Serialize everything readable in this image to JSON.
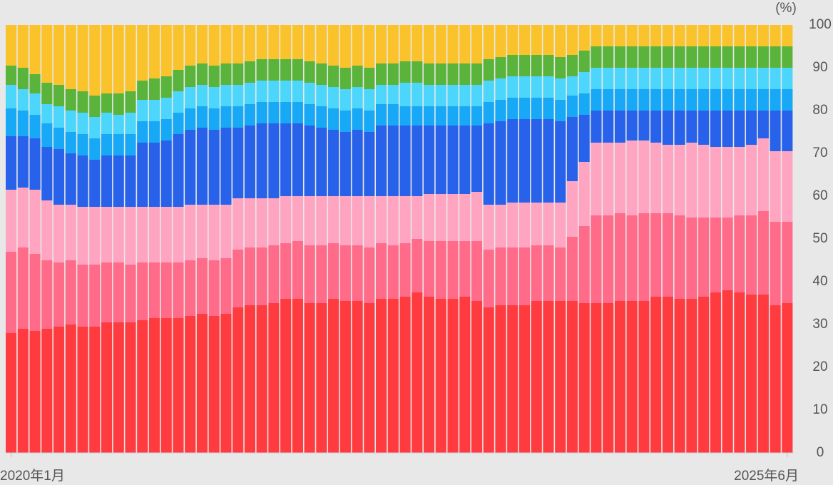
{
  "chart_data": {
    "type": "stacked_bar",
    "ylabel": "(%)",
    "categories": [
      "2020年1月",
      null,
      null,
      null,
      null,
      null,
      null,
      null,
      null,
      null,
      null,
      null,
      null,
      null,
      null,
      null,
      null,
      null,
      null,
      null,
      null,
      null,
      null,
      null,
      null,
      null,
      null,
      null,
      null,
      null,
      null,
      null,
      null,
      null,
      null,
      null,
      null,
      null,
      null,
      null,
      null,
      null,
      null,
      null,
      null,
      null,
      null,
      null,
      null,
      null,
      null,
      null,
      null,
      null,
      null,
      null,
      null,
      null,
      null,
      null,
      null,
      null,
      null,
      null,
      null,
      "2025年6月"
    ],
    "ylim": [
      0,
      100
    ],
    "yticks": [
      0,
      10,
      20,
      30,
      40,
      50,
      60,
      70,
      80,
      90,
      100
    ],
    "grid": false,
    "series": [
      {
        "color": "#ff3b40",
        "values": [
          28,
          29,
          28.5,
          29,
          29.5,
          30,
          29.5,
          29.5,
          30.5,
          30.5,
          30.5,
          31,
          31.5,
          31.5,
          31.5,
          32,
          32.5,
          32,
          32.5,
          34,
          34.5,
          34.5,
          35,
          36,
          36,
          35,
          35,
          36,
          35.5,
          35.5,
          35,
          36,
          36,
          36.5,
          37.5,
          36.5,
          36,
          36,
          36.5,
          35.5,
          34,
          34.5,
          34.5,
          34.5,
          35.5,
          35.5,
          35.5,
          35.5,
          35,
          35,
          35,
          35.5,
          35.5,
          35.5,
          36.5,
          36.5,
          36,
          36,
          36.5,
          37.5,
          38,
          37.5,
          37,
          37,
          34.5,
          35
        ]
      },
      {
        "color": "#ff6b89",
        "values": [
          19,
          19,
          18,
          16,
          15,
          15,
          14.5,
          14.5,
          14,
          14,
          13.5,
          13.5,
          13,
          13,
          13,
          13,
          13,
          13,
          13,
          13.5,
          13.5,
          13.5,
          13.5,
          13,
          13.5,
          13.5,
          13.5,
          13,
          13,
          13,
          13,
          13,
          12.5,
          12.5,
          12.5,
          13,
          13.5,
          13.5,
          13,
          14,
          13.5,
          13.5,
          13.5,
          13.5,
          13,
          13,
          12.5,
          15,
          18,
          20.5,
          20.5,
          20.5,
          20,
          20.5,
          19.5,
          19.5,
          19.5,
          19,
          18.5,
          17.5,
          17,
          18,
          18.5,
          19.5,
          19.5,
          19
        ]
      },
      {
        "color": "#ffa5c1",
        "values": [
          14.5,
          14,
          15,
          14,
          13.5,
          13,
          13.5,
          13.5,
          13,
          13,
          13.5,
          13,
          13,
          13,
          13,
          13,
          12.5,
          13,
          12.5,
          12,
          11.5,
          11.5,
          11,
          11,
          10.5,
          11.5,
          11.5,
          11,
          11.5,
          11.5,
          12,
          11,
          11.5,
          11,
          10,
          11,
          11,
          11,
          11,
          11.5,
          10.5,
          10,
          10.5,
          10.5,
          10,
          10,
          10.5,
          13,
          15,
          17,
          17,
          16.5,
          17.5,
          17,
          16.5,
          16,
          16.5,
          17.5,
          17,
          16.5,
          16.5,
          16,
          16.5,
          17,
          16.5,
          16.5
        ]
      },
      {
        "color": "#2962ea",
        "values": [
          12.5,
          12,
          12,
          12.5,
          13,
          12,
          12,
          11,
          12,
          12,
          12,
          15,
          15,
          15.5,
          17,
          17.5,
          18,
          17.5,
          18,
          16.5,
          17,
          17.5,
          17.5,
          17,
          17,
          16.5,
          16,
          15.5,
          15,
          15.5,
          15,
          16.5,
          16.5,
          16.5,
          16.5,
          16,
          16,
          16,
          16,
          15.5,
          19,
          19.5,
          19.5,
          19.5,
          19.5,
          19.5,
          19,
          15,
          11,
          7.5,
          7.5,
          7.5,
          7,
          7,
          7.5,
          8,
          8,
          7.5,
          8,
          8.5,
          8.5,
          8.5,
          8,
          6.5,
          9.5,
          9.5
        ]
      },
      {
        "color": "#17a8f6",
        "values": [
          6.5,
          6,
          5.5,
          5.5,
          5,
          5,
          5,
          5,
          5,
          5,
          5,
          5,
          5,
          5,
          5,
          5,
          5,
          5,
          5,
          5,
          5,
          5,
          5,
          5,
          5,
          5,
          5,
          5,
          5,
          5,
          5,
          5,
          5,
          4.5,
          4.5,
          4.5,
          4.5,
          4.5,
          4.5,
          4.5,
          5,
          5,
          5,
          5,
          5,
          5,
          5,
          5,
          5,
          5,
          5,
          5,
          5,
          5,
          5,
          5,
          5,
          5,
          5,
          5,
          5,
          5,
          5,
          5,
          5,
          5
        ]
      },
      {
        "color": "#4dd6fc",
        "values": [
          5.5,
          5,
          5,
          4.5,
          5,
          5,
          5,
          5,
          5,
          4.5,
          5,
          5,
          5,
          5,
          5,
          5,
          5,
          5,
          5,
          5,
          5,
          5,
          5,
          5,
          5,
          5,
          5,
          5,
          5,
          5,
          5,
          4.5,
          4.5,
          5.5,
          5.5,
          5,
          5,
          5,
          5,
          5,
          5,
          5,
          5,
          5,
          5,
          5,
          5,
          4.5,
          5,
          5,
          5,
          5,
          5,
          5,
          5,
          5,
          5,
          5,
          5,
          5,
          5,
          5,
          5,
          5,
          5,
          5
        ]
      },
      {
        "color": "#5ab43c",
        "values": [
          4.5,
          5,
          4.5,
          5,
          5,
          5,
          5,
          5,
          4.5,
          5,
          5,
          4.5,
          5,
          5,
          5,
          5,
          5,
          5,
          5,
          5,
          5,
          5,
          5,
          5,
          5,
          5,
          5,
          5,
          5,
          5,
          5,
          5,
          5,
          5,
          5,
          5,
          5,
          5,
          5,
          5,
          5,
          5,
          5,
          5,
          5,
          5,
          5,
          5,
          5,
          5,
          5,
          5,
          5,
          5,
          5,
          5,
          5,
          5,
          5,
          5,
          5,
          5,
          5,
          5,
          5,
          5
        ]
      },
      {
        "color": "#fbc32b",
        "values": [
          9.5,
          10,
          11.5,
          13.5,
          14,
          15,
          15.5,
          16.5,
          16,
          16,
          15.5,
          13,
          12.5,
          12,
          10.5,
          9.5,
          9,
          9.5,
          9,
          9,
          8.5,
          8,
          8,
          8,
          8,
          8.5,
          9,
          9.5,
          10,
          9.5,
          10,
          9,
          9,
          8.5,
          8.5,
          9,
          9,
          9,
          9,
          9,
          8,
          7.5,
          7,
          7,
          7,
          7,
          7.5,
          7,
          6,
          5,
          5,
          5,
          5,
          5,
          5,
          5,
          5,
          5,
          5,
          5,
          5,
          5,
          5,
          5,
          5,
          5
        ]
      }
    ]
  }
}
